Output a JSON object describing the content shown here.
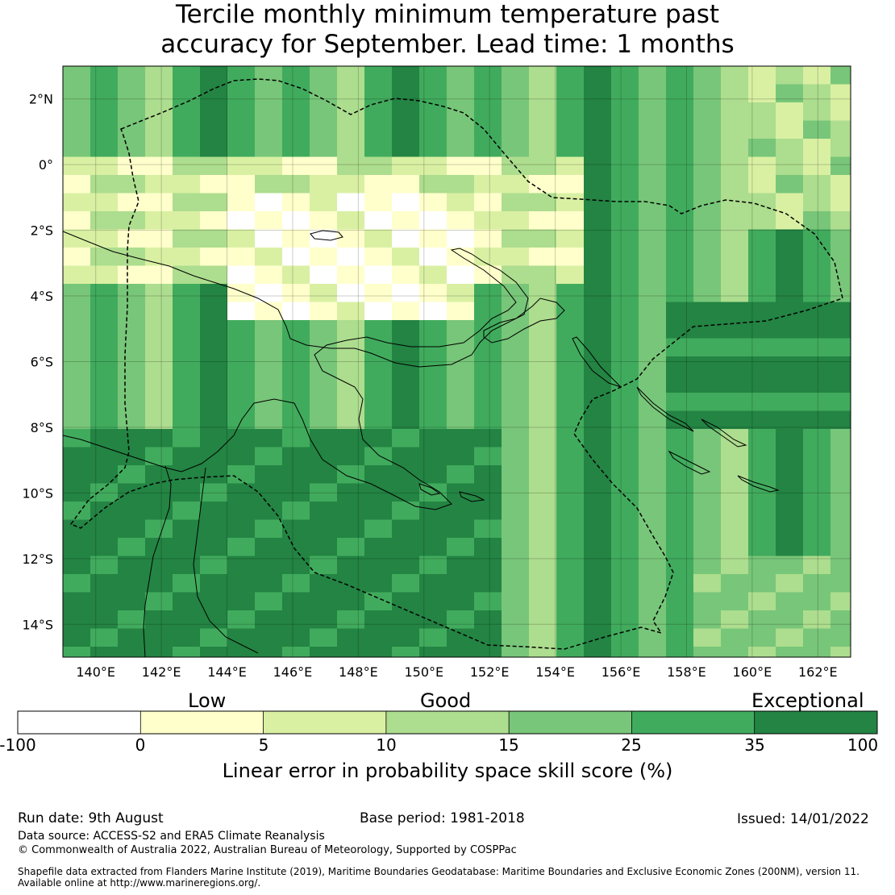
{
  "title": {
    "line1": "Tercile monthly minimum temperature past",
    "line2": "accuracy for September. Lead time: 1 months"
  },
  "map": {
    "lat_labels": [
      "2°N",
      "0°",
      "2°S",
      "4°S",
      "6°S",
      "8°S",
      "10°S",
      "12°S",
      "14°S"
    ],
    "lon_labels": [
      "140°E",
      "142°E",
      "144°E",
      "146°E",
      "148°E",
      "150°E",
      "152°E",
      "154°E",
      "156°E",
      "158°E",
      "160°E",
      "162°E"
    ],
    "lon_range": [
      139,
      163
    ],
    "lat_range": [
      -15,
      3
    ]
  },
  "legend": {
    "categories": [
      "Low",
      "Good",
      "Exceptional"
    ],
    "ticks": [
      "-100",
      "0",
      "5",
      "10",
      "15",
      "25",
      "35",
      "100"
    ],
    "colors": [
      "#ffffff",
      "#ffffcc",
      "#d9f0a3",
      "#addd8e",
      "#78c679",
      "#41ab5d",
      "#238443"
    ],
    "title": "Linear error in probability space skill score (%)"
  },
  "footer": {
    "run_date": "Run date: 9th August",
    "base_period": "Base period: 1981-2018",
    "issued": "Issued: 14/01/2022",
    "data_source": "Data source: ACCESS-S2 and ERA5 Climate Reanalysis",
    "copyright": "© Commonwealth of Australia 2022, Australian Bureau of Meteorology, Supported by COSPPac",
    "shapefile_line1": "Shapefile data extracted from Flanders Marine Institute (2019), Maritime Boundaries Geodatabase: Maritime Boundaries and Exclusive Economic Zones (200NM), version 11.",
    "shapefile_line2": "Available online at http://www.marineregions.org/."
  }
}
